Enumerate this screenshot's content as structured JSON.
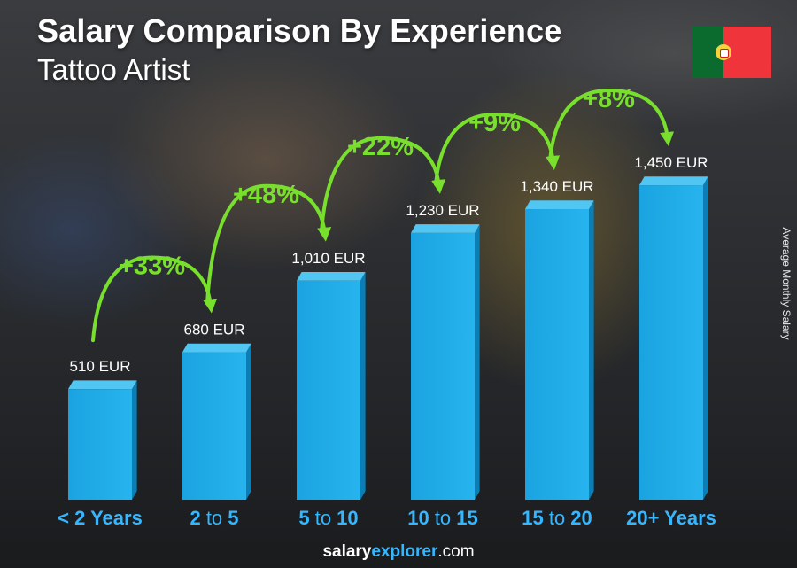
{
  "header": {
    "title": "Salary Comparison By Experience",
    "subtitle": "Tattoo Artist"
  },
  "flag": {
    "country_icon": "portugal-flag-icon",
    "colors": [
      "#0b6b2e",
      "#f0343c",
      "#f6d23c"
    ]
  },
  "footer": {
    "brand_bold": "salary",
    "brand_accent": "explorer",
    "domain": ".com"
  },
  "colors": {
    "bar": "#1aa3e0",
    "bar_top": "#52c6f2",
    "bar_side": "#0b7fb5",
    "growth": "#78e02c",
    "category_text": "#35b6ff"
  },
  "chart_data": {
    "type": "bar",
    "title": "Salary Comparison By Experience",
    "subtitle": "Tattoo Artist",
    "ylabel": "Average Monthly Salary",
    "unit": "EUR",
    "categories": [
      {
        "bold1": "< 2 Years",
        "mid": "",
        "bold2": ""
      },
      {
        "bold1": "2",
        "mid": " to ",
        "bold2": "5"
      },
      {
        "bold1": "5",
        "mid": " to ",
        "bold2": "10"
      },
      {
        "bold1": "10",
        "mid": " to ",
        "bold2": "15"
      },
      {
        "bold1": "15",
        "mid": " to ",
        "bold2": "20"
      },
      {
        "bold1": "20+ Years",
        "mid": "",
        "bold2": ""
      }
    ],
    "values": [
      510,
      680,
      1010,
      1230,
      1340,
      1450
    ],
    "value_labels": [
      "510 EUR",
      "680 EUR",
      "1,010 EUR",
      "1,230 EUR",
      "1,340 EUR",
      "1,450 EUR"
    ],
    "growth_labels": [
      "+33%",
      "+48%",
      "+22%",
      "+9%",
      "+8%"
    ],
    "ylim": [
      0,
      1630
    ],
    "grid": false,
    "legend": "none"
  }
}
